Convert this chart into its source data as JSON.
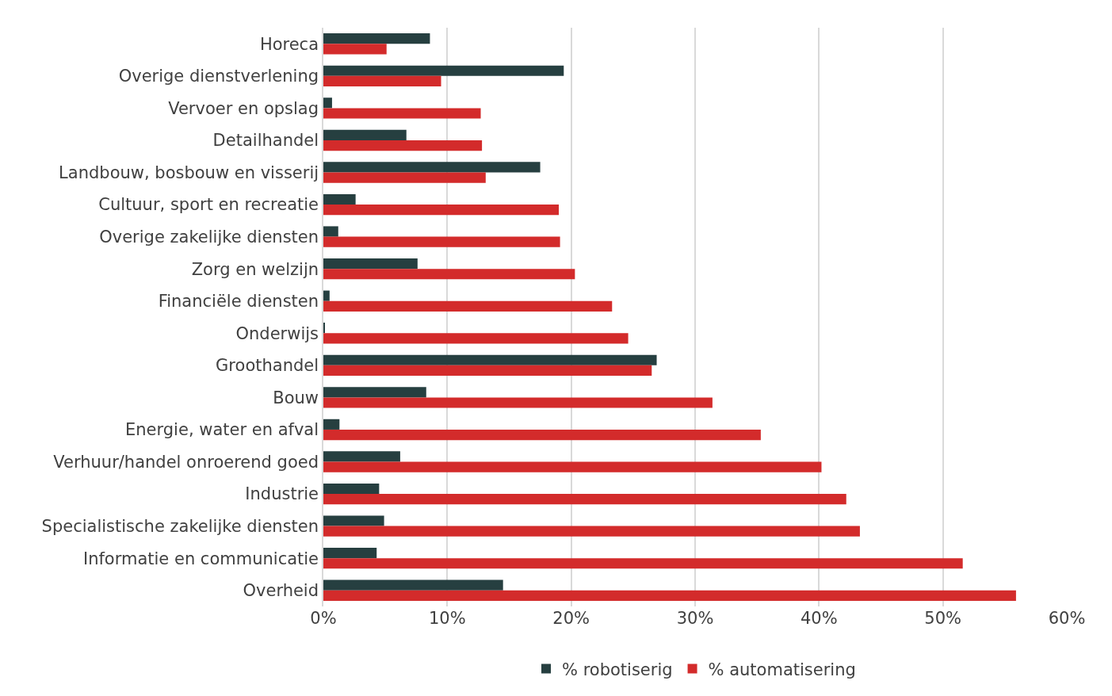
{
  "chart_data": {
    "type": "bar",
    "orientation": "horizontal",
    "categories": [
      "Horeca",
      "Overige dienstverlening",
      "Vervoer en opslag",
      "Detailhandel",
      "Landbouw, bosbouw en visserij",
      "Cultuur, sport en recreatie",
      "Overige zakelijke diensten",
      "Zorg en welzijn",
      "Financiële diensten",
      "Onderwijs",
      "Groothandel",
      "Bouw",
      "Energie, water en afval",
      "Verhuur/handel onroerend goed",
      "Industrie",
      "Specialistische zakelijke diensten",
      "Informatie en communicatie",
      "Overheid"
    ],
    "series": [
      {
        "name": "% robotiserig",
        "color": "#263f40",
        "values": [
          8.6,
          19.4,
          0.7,
          6.7,
          17.5,
          2.6,
          1.2,
          7.6,
          0.5,
          0.1,
          26.9,
          8.3,
          1.3,
          6.2,
          4.5,
          4.9,
          4.3,
          14.5
        ]
      },
      {
        "name": "% automatisering",
        "color": "#d32b2b",
        "values": [
          5.1,
          9.5,
          12.7,
          12.8,
          13.1,
          19.0,
          19.1,
          20.3,
          23.3,
          24.6,
          26.5,
          31.4,
          35.3,
          40.2,
          42.2,
          43.3,
          51.6,
          55.9
        ]
      }
    ],
    "xlim": [
      0,
      60
    ],
    "xticks": [
      {
        "value": 0,
        "label": "0%"
      },
      {
        "value": 10,
        "label": "10%"
      },
      {
        "value": 20,
        "label": "20%"
      },
      {
        "value": 30,
        "label": "30%"
      },
      {
        "value": 40,
        "label": "40%"
      },
      {
        "value": 50,
        "label": "50%"
      },
      {
        "value": 60,
        "label": "60%"
      }
    ],
    "grid": "x",
    "legend": "bottom"
  }
}
